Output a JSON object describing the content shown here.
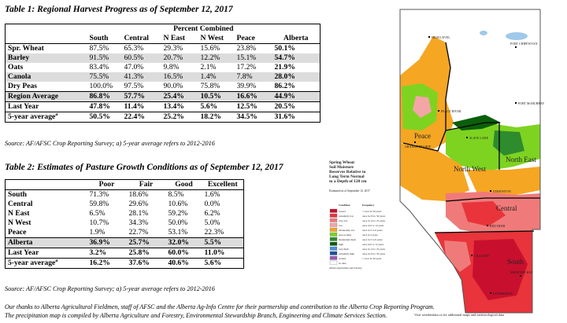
{
  "table1": {
    "title": "Table 1: Regional Harvest Progress as of September 12, 2017",
    "group_header": "Percent Combined",
    "columns": [
      "South",
      "Central",
      "N East",
      "N West",
      "Peace",
      "Alberta"
    ],
    "rows": [
      {
        "label": "Spr. Wheat",
        "values": [
          "87.5%",
          "65.3%",
          "29.3%",
          "15.6%",
          "23.8%",
          "50.1%"
        ]
      },
      {
        "label": "Barley",
        "values": [
          "91.5%",
          "60.5%",
          "20.7%",
          "12.2%",
          "15.1%",
          "54.7%"
        ]
      },
      {
        "label": "Oats",
        "values": [
          "83.4%",
          "47.0%",
          "9.8%",
          "2.1%",
          "17.2%",
          "21.9%"
        ]
      },
      {
        "label": "Canola",
        "values": [
          "75.5%",
          "41.3%",
          "16.5%",
          "1.4%",
          "7.8%",
          "28.0%"
        ]
      },
      {
        "label": "Dry Peas",
        "values": [
          "100.0%",
          "97.5%",
          "90.0%",
          "75.8%",
          "39.9%",
          "86.2%"
        ]
      },
      {
        "label": "Region Average",
        "values": [
          "86.8%",
          "57.7%",
          "25.4%",
          "10.5%",
          "16.6%",
          "44.9%"
        ]
      },
      {
        "label": "Last Year",
        "values": [
          "47.8%",
          "11.4%",
          "13.4%",
          "5.6%",
          "12.5%",
          "20.5%"
        ]
      },
      {
        "label": "5-year average",
        "sup": "a",
        "values": [
          "50.5%",
          "22.4%",
          "25.2%",
          "18.2%",
          "34.5%",
          "31.6%"
        ]
      }
    ],
    "source": "Source: AF/AFSC Crop Reporting Survey; a) 5-year average refers to 2012-2016"
  },
  "table2": {
    "title": "Table 2: Estimates of Pasture Growth Conditions as of September 12, 2017",
    "columns": [
      "Poor",
      "Fair",
      "Good",
      "Excellent"
    ],
    "rows": [
      {
        "label": "South",
        "values": [
          "71.3%",
          "18.6%",
          "8.5%",
          "1.6%"
        ]
      },
      {
        "label": "Central",
        "values": [
          "59.8%",
          "29.6%",
          "10.6%",
          "0.0%"
        ]
      },
      {
        "label": "N East",
        "values": [
          "6.5%",
          "28.1%",
          "59.2%",
          "6.2%"
        ]
      },
      {
        "label": "N West",
        "values": [
          "10.7%",
          "34.3%",
          "50.0%",
          "5.0%"
        ]
      },
      {
        "label": "Peace",
        "values": [
          "1.9%",
          "22.7%",
          "53.1%",
          "22.3%"
        ]
      },
      {
        "label": "Alberta",
        "values": [
          "36.9%",
          "25.7%",
          "32.0%",
          "5.5%"
        ]
      },
      {
        "label": "Last Year",
        "values": [
          "3.2%",
          "25.8%",
          "60.0%",
          "11.0%"
        ]
      },
      {
        "label": "5-year average",
        "sup": "a",
        "values": [
          "16.2%",
          "37.6%",
          "40.6%",
          "5.6%"
        ]
      }
    ],
    "source": "Source: AF/AFSC Crop Reporting Survey; a) 5-year average refers to 2012-2016"
  },
  "footer": {
    "line1": "Our thanks to Alberta Agricultural Fieldmen, staff of AFSC and the Alberta Ag-Info Centre for their partnership and contribution to the Alberta Crop Reporting Program.",
    "line2": "The precipitation map is compiled by Alberta Agriculture and Forestry, Environmental Stewardship Branch, Engineering and Climate Services Section."
  },
  "map": {
    "title_lines": [
      "Spring Wheat",
      "Soil Moisture",
      "Reserves Relative to",
      "Long Term Normal",
      "to a Depth of 120 cm"
    ],
    "date_text": "Estimated as of September 12, 2017",
    "legend_col_headers": [
      "Condition",
      "Frequency"
    ],
    "legend": [
      {
        "color": "#c8102e",
        "condition": "lowest",
        "frequency": "< once in 50 years"
      },
      {
        "color": "#e8343a",
        "condition": "extremely low",
        "frequency": "once in 25 to 50 years"
      },
      {
        "color": "#f07a7a",
        "condition": "very low",
        "frequency": "once in 12 to 25 years"
      },
      {
        "color": "#f4a6a6",
        "condition": "low",
        "frequency": "once in 6 to 12 years"
      },
      {
        "color": "#f5a623",
        "condition": "moderately low",
        "frequency": "once in 3 to 6 years"
      },
      {
        "color": "#7ed321",
        "condition": "near normal",
        "frequency": "once in 3 years"
      },
      {
        "color": "#2e8b2e",
        "condition": "moderately high",
        "frequency": "once in 3 to 6 years"
      },
      {
        "color": "#0b5e0b",
        "condition": "high",
        "frequency": "once in 6 to 12 years"
      },
      {
        "color": "#4a90e2",
        "condition": "very high",
        "frequency": "once in 12 to 25 years"
      },
      {
        "color": "#1f4fa0",
        "condition": "extremely high",
        "frequency": "once in 25 to 50 years"
      },
      {
        "color": "#9b59b6",
        "condition": "wettest",
        "frequency": "> once in 50 years"
      },
      {
        "color": "#ffffff",
        "condition": "no data",
        "frequency": ""
      }
    ],
    "region_labels": [
      "Peace",
      "North West",
      "North East",
      "Central",
      "South"
    ],
    "cities": [
      "FORT CHIPEWYAN",
      "HIGH LEVEL",
      "PEACE RIVER",
      "GRANDE PRAIRIE",
      "FORT McMURRAY",
      "SLAVE LAKE",
      "EDMONTON",
      "RED DEER",
      "CALGARY",
      "LETHBRIDGE",
      "MEDICINE HAT"
    ],
    "footer_note": "Visit weatherdata.ca for additional maps and meteorological data",
    "credit": "Alberta Agriculture and Forestry",
    "colors": {
      "outline": "#555555",
      "lake": "#9fc9ea",
      "region_border": "#000000"
    }
  }
}
